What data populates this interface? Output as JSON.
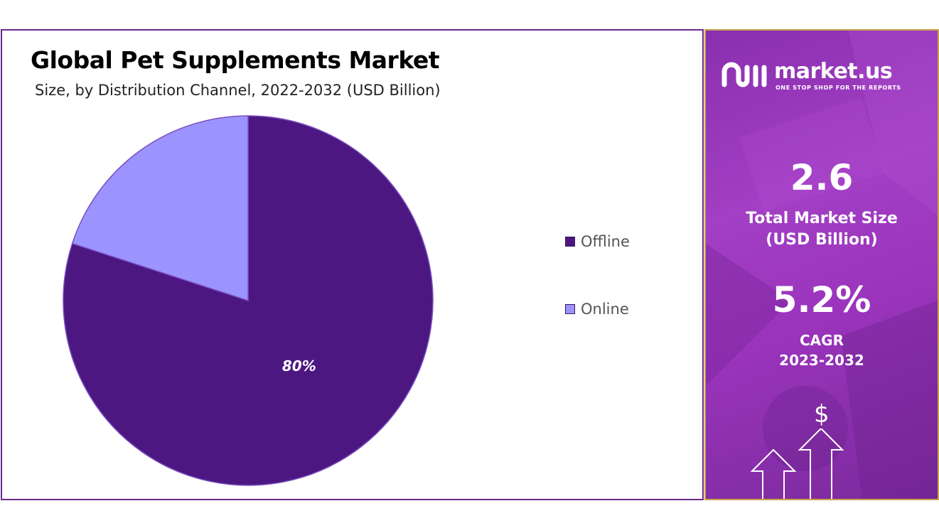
{
  "chart_data": {
    "type": "pie",
    "title": "Global Pet Supplements Market",
    "subtitle": "Size, by Distribution Channel, 2022-2032 (USD Billion)",
    "slices": [
      {
        "name": "Offline",
        "value": 80,
        "color": "#4d1782",
        "label": "80%"
      },
      {
        "name": "Online",
        "value": 20,
        "color": "#9b94ff",
        "label": ""
      }
    ],
    "legend_position": "right"
  },
  "side_panel": {
    "logo_text": "market.us",
    "logo_tagline": "ONE STOP SHOP FOR THE REPORTS",
    "market_size_value": "2.6",
    "market_size_label_line1": "Total Market Size",
    "market_size_label_line2": "(USD Billion)",
    "cagr_value": "5.2%",
    "cagr_label_line1": "CAGR",
    "cagr_label_line2": "2023-2032",
    "dollar_symbol": "$",
    "logo_icon": "market-us-logo-icon",
    "arrow_icons": "up-arrow-icon"
  }
}
